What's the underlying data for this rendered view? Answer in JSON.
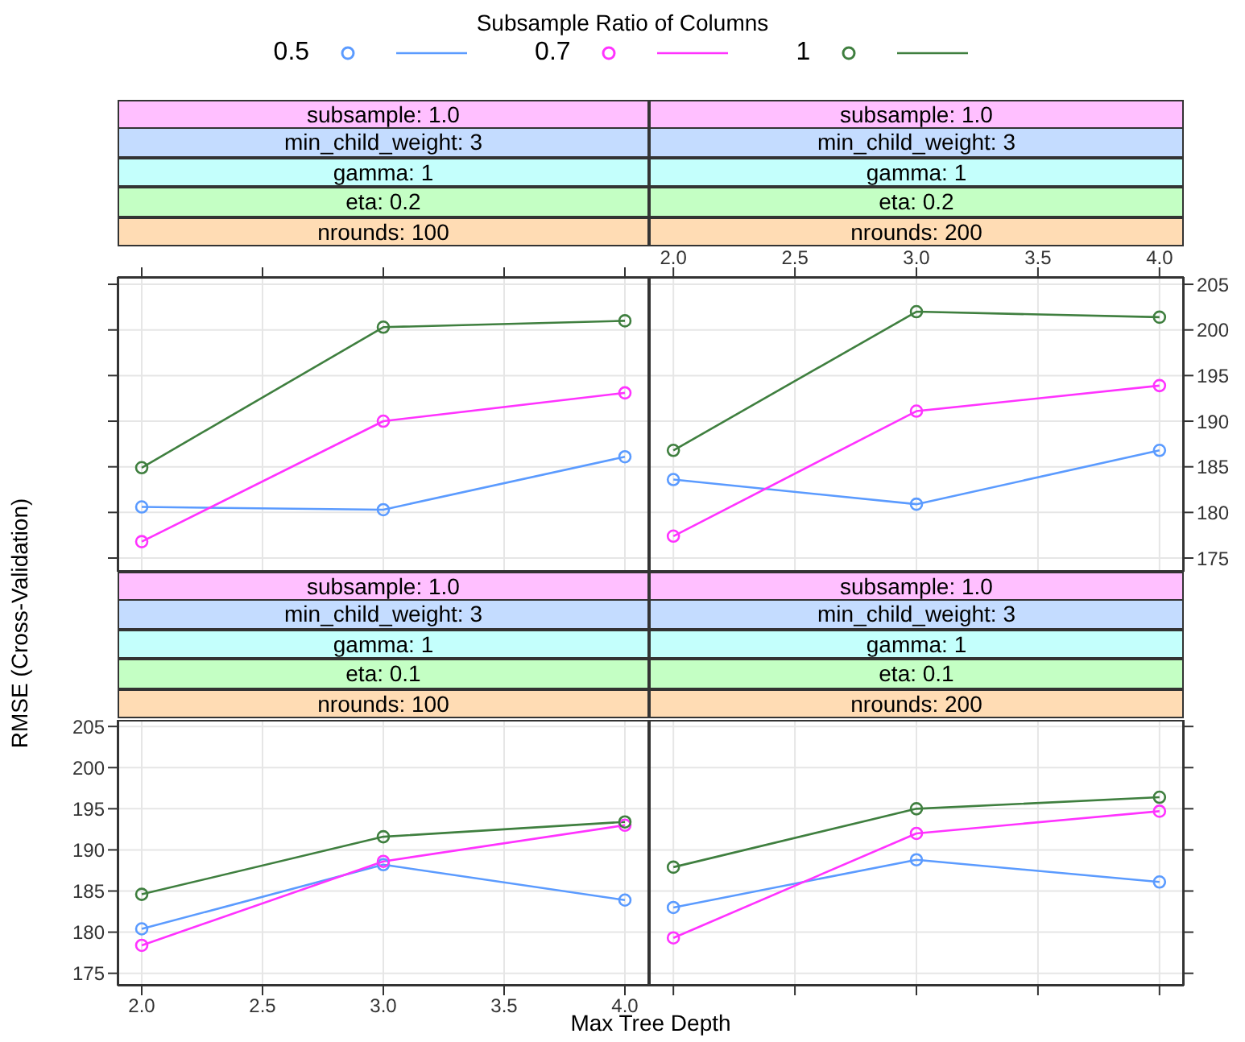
{
  "chart_data": [
    {
      "type": "line",
      "legend_title": "Subsample Ratio of Columns",
      "legend": "top",
      "annotations": [
        "subsample: 1.0",
        "min_child_weight: 3",
        "gamma: 1",
        "eta: 0.2",
        "nrounds: 100"
      ],
      "x": [
        2,
        3,
        4
      ],
      "xlim": [
        1.9,
        4.1
      ],
      "xticks": [
        2,
        2.5,
        3,
        3.5,
        4
      ],
      "ylim": [
        173.5,
        205.8
      ],
      "yticks": [
        175,
        180,
        185,
        190,
        195,
        200,
        205
      ],
      "grid": true,
      "marker": "circle",
      "tick_labels": false,
      "series": [
        {
          "name": "0.5",
          "color": "#5b9bff",
          "values": [
            180.6,
            180.3,
            186.1
          ]
        },
        {
          "name": "0.7",
          "color": "#ff33ff",
          "values": [
            176.8,
            190.0,
            193.1
          ]
        },
        {
          "name": "1",
          "color": "#3f7f3f",
          "values": [
            184.9,
            200.3,
            201.0
          ]
        }
      ]
    },
    {
      "type": "line",
      "annotations": [
        "subsample: 1.0",
        "min_child_weight: 3",
        "gamma: 1",
        "eta: 0.2",
        "nrounds: 200"
      ],
      "x": [
        2,
        3,
        4
      ],
      "xlim": [
        1.9,
        4.1
      ],
      "xticks": [
        {
          "value": 2,
          "label": "2.0"
        },
        {
          "value": 2.5,
          "label": "2.5"
        },
        {
          "value": 3,
          "label": "3.0"
        },
        {
          "value": 3.5,
          "label": "3.5"
        },
        {
          "value": 4,
          "label": "4.0"
        }
      ],
      "ylim": [
        173.5,
        205.8
      ],
      "yticks": [
        175,
        180,
        185,
        190,
        195,
        200,
        205
      ],
      "grid": true,
      "marker": "circle",
      "series": [
        {
          "color": "#5b9bff",
          "values": [
            183.6,
            180.9,
            186.8
          ]
        },
        {
          "color": "#ff33ff",
          "values": [
            177.4,
            191.1,
            193.9
          ]
        },
        {
          "color": "#3f7f3f",
          "values": [
            186.8,
            202.0,
            201.4
          ]
        }
      ]
    },
    {
      "type": "line",
      "xlabel": "Max Tree Depth",
      "ylabel": "RMSE (Cross-Validation)",
      "annotations": [
        "subsample: 1.0",
        "min_child_weight: 3",
        "gamma: 1",
        "eta: 0.1",
        "nrounds: 100"
      ],
      "x": [
        2,
        3,
        4
      ],
      "xlim": [
        1.9,
        4.1
      ],
      "xticks": [
        {
          "value": 2,
          "label": "2.0"
        },
        {
          "value": 2.5,
          "label": "2.5"
        },
        {
          "value": 3,
          "label": "3.0"
        },
        {
          "value": 3.5,
          "label": "3.5"
        },
        {
          "value": 4,
          "label": "4.0"
        }
      ],
      "ylim": [
        173.5,
        205.8
      ],
      "yticks": [
        175,
        180,
        185,
        190,
        195,
        200,
        205
      ],
      "grid": true,
      "marker": "circle",
      "series": [
        {
          "color": "#5b9bff",
          "values": [
            180.4,
            188.2,
            183.9
          ]
        },
        {
          "color": "#ff33ff",
          "values": [
            178.4,
            188.6,
            193.0
          ]
        },
        {
          "color": "#3f7f3f",
          "values": [
            184.6,
            191.6,
            193.4
          ]
        }
      ]
    },
    {
      "type": "line",
      "annotations": [
        "subsample: 1.0",
        "min_child_weight: 3",
        "gamma: 1",
        "eta: 0.1",
        "nrounds: 200"
      ],
      "x": [
        2,
        3,
        4
      ],
      "xlim": [
        1.9,
        4.1
      ],
      "xticks": [
        2,
        2.5,
        3,
        3.5,
        4
      ],
      "ylim": [
        173.5,
        205.8
      ],
      "yticks": [
        175,
        180,
        185,
        190,
        195,
        200,
        205
      ],
      "grid": true,
      "marker": "circle",
      "tick_labels": false,
      "series": [
        {
          "color": "#5b9bff",
          "values": [
            183.0,
            188.8,
            186.1
          ]
        },
        {
          "color": "#ff33ff",
          "values": [
            179.3,
            192.0,
            194.7
          ]
        },
        {
          "color": "#3f7f3f",
          "values": [
            187.9,
            195.0,
            196.4
          ]
        }
      ]
    }
  ]
}
